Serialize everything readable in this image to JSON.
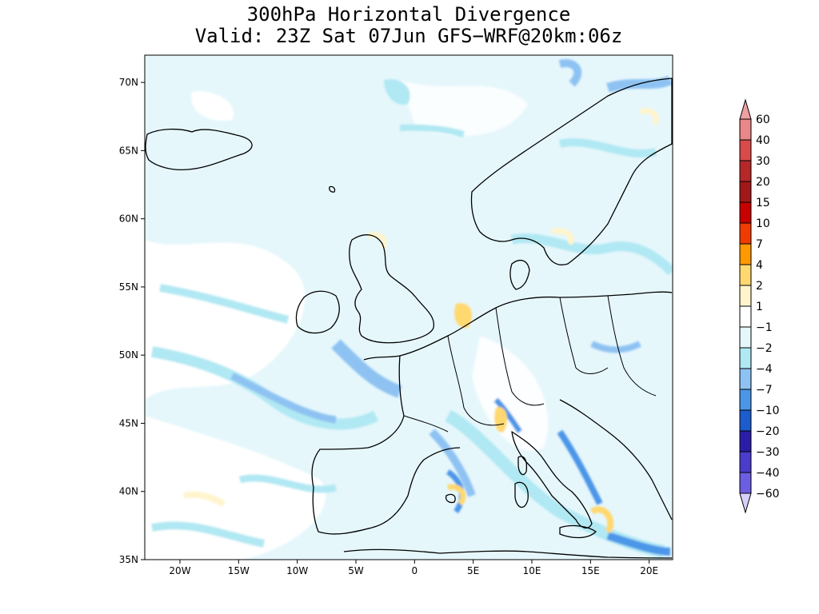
{
  "title": {
    "line1": "300hPa Horizontal Divergence",
    "line2": "Valid: 23Z Sat 07Jun GFS−WRF@20km:06z"
  },
  "map": {
    "lon_range": [
      -23,
      22
    ],
    "lat_range": [
      35,
      72
    ],
    "lat_ticks": [
      {
        "value": 70,
        "label": "70N"
      },
      {
        "value": 65,
        "label": "65N"
      },
      {
        "value": 60,
        "label": "60N"
      },
      {
        "value": 55,
        "label": "55N"
      },
      {
        "value": 50,
        "label": "50N"
      },
      {
        "value": 45,
        "label": "45N"
      },
      {
        "value": 40,
        "label": "40N"
      },
      {
        "value": 35,
        "label": "35N"
      }
    ],
    "lon_ticks": [
      {
        "value": -20,
        "label": "20W"
      },
      {
        "value": -15,
        "label": "15W"
      },
      {
        "value": -10,
        "label": "10W"
      },
      {
        "value": -5,
        "label": "5W"
      },
      {
        "value": 0,
        "label": "0"
      },
      {
        "value": 5,
        "label": "5E"
      },
      {
        "value": 10,
        "label": "10E"
      },
      {
        "value": 15,
        "label": "15E"
      },
      {
        "value": 20,
        "label": "20E"
      }
    ],
    "field_background_color": "#e6f7fc"
  },
  "colorbar": {
    "levels": [
      {
        "label": "60",
        "color": "#e88888"
      },
      {
        "label": "40",
        "color": "#d94a4a"
      },
      {
        "label": "30",
        "color": "#b62828"
      },
      {
        "label": "20",
        "color": "#a01818"
      },
      {
        "label": "15",
        "color": "#c80000"
      },
      {
        "label": "10",
        "color": "#f03c00"
      },
      {
        "label": "7",
        "color": "#ff9900"
      },
      {
        "label": "4",
        "color": "#ffd870"
      },
      {
        "label": "2",
        "color": "#fff4cc"
      },
      {
        "label": "1",
        "color": "#ffffff"
      },
      {
        "label": "−1",
        "color": "#e6f7fc"
      },
      {
        "label": "−2",
        "color": "#b0e8f3"
      },
      {
        "label": "−4",
        "color": "#8ec2f2"
      },
      {
        "label": "−7",
        "color": "#4c96e8"
      },
      {
        "label": "−10",
        "color": "#1c5ccc"
      },
      {
        "label": "−20",
        "color": "#2a1ea8"
      },
      {
        "label": "−30",
        "color": "#4a3ccc"
      },
      {
        "label": "−40",
        "color": "#6c5ee0"
      },
      {
        "label": "−60",
        "color": "#a898f4"
      }
    ],
    "top_color": "#f0a0a0",
    "bottom_color": "#d8d0fc"
  }
}
